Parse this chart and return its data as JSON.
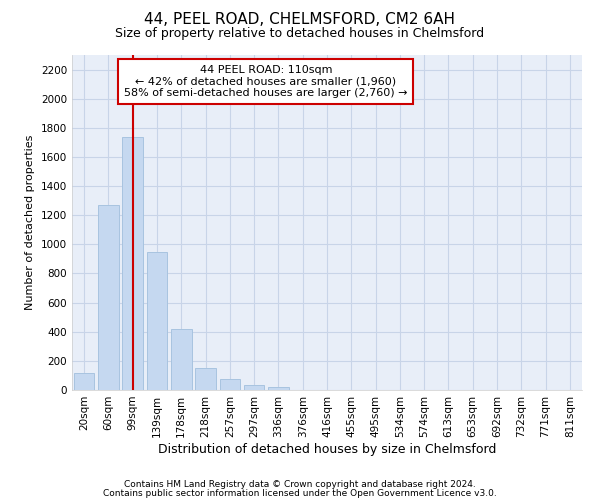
{
  "title": "44, PEEL ROAD, CHELMSFORD, CM2 6AH",
  "subtitle": "Size of property relative to detached houses in Chelmsford",
  "xlabel": "Distribution of detached houses by size in Chelmsford",
  "ylabel": "Number of detached properties",
  "footnote1": "Contains HM Land Registry data © Crown copyright and database right 2024.",
  "footnote2": "Contains public sector information licensed under the Open Government Licence v3.0.",
  "categories": [
    "20sqm",
    "60sqm",
    "99sqm",
    "139sqm",
    "178sqm",
    "218sqm",
    "257sqm",
    "297sqm",
    "336sqm",
    "376sqm",
    "416sqm",
    "455sqm",
    "495sqm",
    "534sqm",
    "574sqm",
    "613sqm",
    "653sqm",
    "692sqm",
    "732sqm",
    "771sqm",
    "811sqm"
  ],
  "values": [
    120,
    1270,
    1740,
    950,
    420,
    150,
    75,
    35,
    20,
    0,
    0,
    0,
    0,
    0,
    0,
    0,
    0,
    0,
    0,
    0,
    0
  ],
  "bar_color": "#c5d8f0",
  "bar_edge_color": "#a8c4e0",
  "vline_color": "#cc0000",
  "vline_x": 2.5,
  "annotation_text": "44 PEEL ROAD: 110sqm\n← 42% of detached houses are smaller (1,960)\n58% of semi-detached houses are larger (2,760) →",
  "annotation_box_facecolor": "white",
  "annotation_box_edgecolor": "#cc0000",
  "ylim": [
    0,
    2300
  ],
  "yticks": [
    0,
    200,
    400,
    600,
    800,
    1000,
    1200,
    1400,
    1600,
    1800,
    2000,
    2200
  ],
  "grid_color": "#c8d4e8",
  "background_color": "#e8eef8",
  "title_fontsize": 11,
  "subtitle_fontsize": 9,
  "xlabel_fontsize": 9,
  "ylabel_fontsize": 8,
  "tick_fontsize": 7.5,
  "annotation_fontsize": 8,
  "footnote_fontsize": 6.5
}
